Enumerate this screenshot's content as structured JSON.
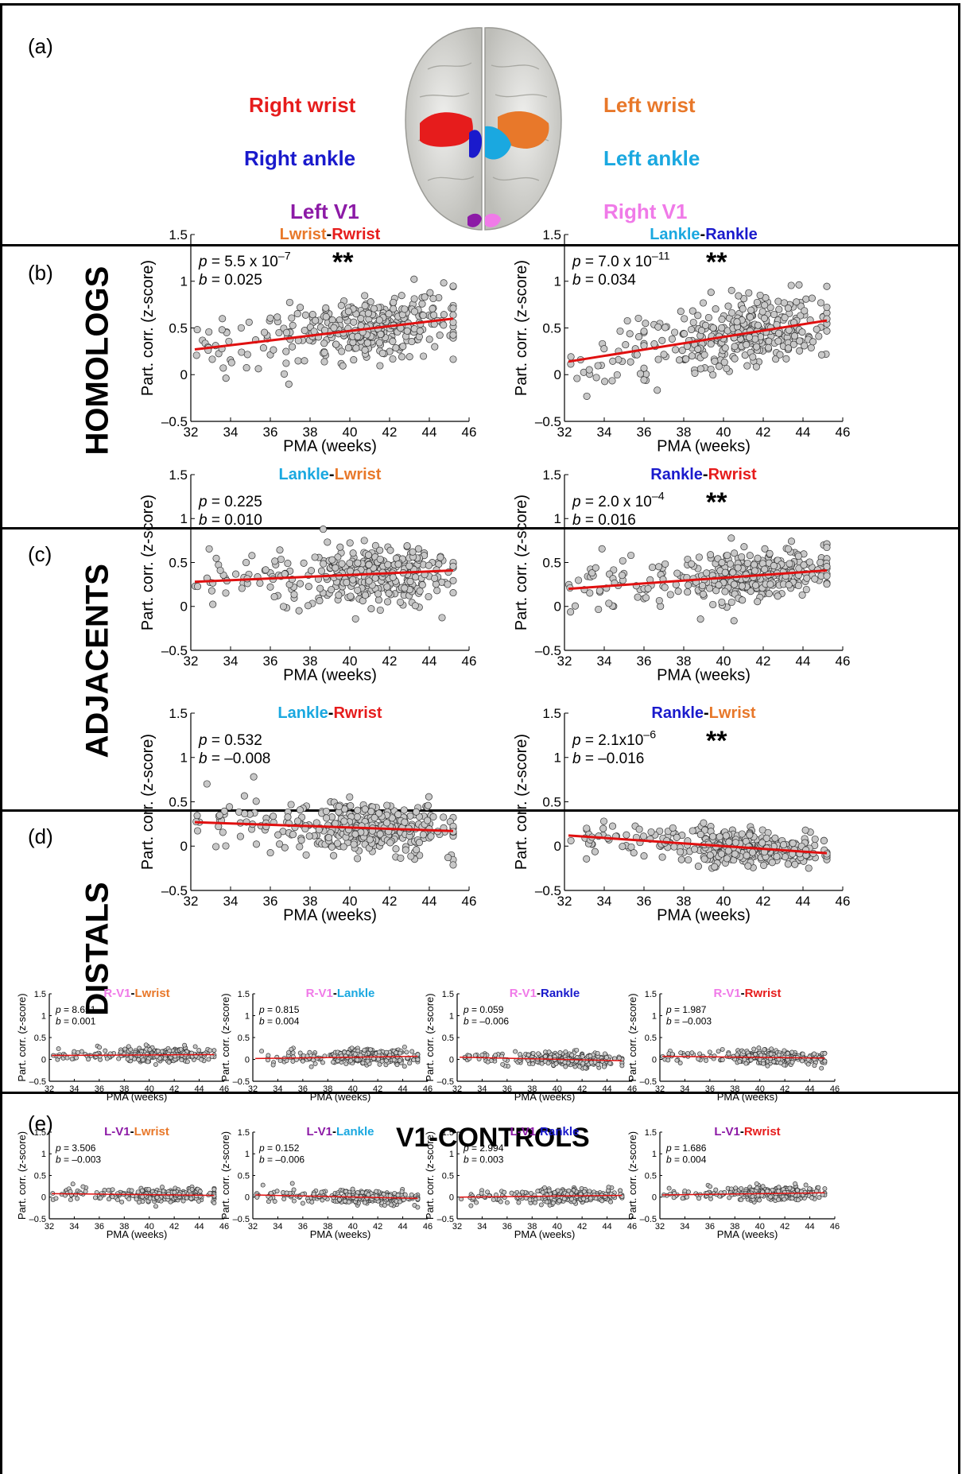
{
  "colors": {
    "right_wrist": "#e61c1c",
    "right_ankle": "#1a1acc",
    "left_v1": "#8c1aa6",
    "left_wrist": "#e8782a",
    "left_ankle": "#1aa8e0",
    "right_v1": "#f07ae8",
    "fit_line": "#e01010",
    "points": "#c8c8c8"
  },
  "panel_a": {
    "label": "(a)",
    "left_labels": [
      "Right wrist",
      "Right ankle",
      "Left V1"
    ],
    "right_labels": [
      "Left wrist",
      "Left ankle",
      "Right V1"
    ]
  },
  "panel_b": {
    "label": "(b)",
    "row_label": "HOMOLOGS"
  },
  "panel_c": {
    "label": "(c)",
    "row_label": "ADJACENTS"
  },
  "panel_d": {
    "label": "(d)",
    "row_label": "DISTALS"
  },
  "panel_e": {
    "label": "(e)",
    "title": "V1-CONTROLS"
  },
  "axes": {
    "xlabel": "PMA (weeks)",
    "ylabel": "Part. corr. (z-score)",
    "xlim": [
      32,
      46
    ],
    "ylim": [
      -0.5,
      1.5
    ],
    "xticks": [
      "32",
      "34",
      "36",
      "38",
      "40",
      "42",
      "44",
      "46"
    ],
    "yticks": [
      "–0.5",
      "0",
      "0.5",
      "1",
      "1.5"
    ]
  },
  "chart_data": [
    {
      "type": "scatter",
      "title_parts": [
        {
          "text": "Lwrist",
          "color": "left_wrist"
        },
        {
          "text": "-",
          "color": "black"
        },
        {
          "text": "Rwrist",
          "color": "right_wrist"
        }
      ],
      "p_text": "5.5 x 10",
      "p_exp": "–7",
      "b_text": "0.025",
      "stars": "**",
      "fit": {
        "x": [
          32.2,
          45.2
        ],
        "y": [
          0.27,
          0.6
        ]
      },
      "mean": 0.48,
      "spread": 0.17
    },
    {
      "type": "scatter",
      "title_parts": [
        {
          "text": "Lankle",
          "color": "left_ankle"
        },
        {
          "text": "-",
          "color": "black"
        },
        {
          "text": "Rankle",
          "color": "right_ankle"
        }
      ],
      "p_text": "7.0 x 10",
      "p_exp": "–11",
      "b_text": "0.034",
      "stars": "**",
      "fit": {
        "x": [
          32.2,
          45.2
        ],
        "y": [
          0.14,
          0.58
        ]
      },
      "mean": 0.44,
      "spread": 0.18
    },
    {
      "type": "scatter",
      "title_parts": [
        {
          "text": "Lankle",
          "color": "left_ankle"
        },
        {
          "text": "-",
          "color": "black"
        },
        {
          "text": "Lwrist",
          "color": "left_wrist"
        }
      ],
      "p_text": "0.225",
      "p_exp": "",
      "b_text": "0.010",
      "stars": "",
      "fit": {
        "x": [
          32.2,
          45.2
        ],
        "y": [
          0.28,
          0.41
        ]
      },
      "mean": 0.36,
      "spread": 0.16
    },
    {
      "type": "scatter",
      "title_parts": [
        {
          "text": "Rankle",
          "color": "right_ankle"
        },
        {
          "text": "-",
          "color": "black"
        },
        {
          "text": "Rwrist",
          "color": "right_wrist"
        }
      ],
      "p_text": "2.0 x 10",
      "p_exp": "–4",
      "b_text": "0.016",
      "stars": "**",
      "fit": {
        "x": [
          32.2,
          45.2
        ],
        "y": [
          0.2,
          0.41
        ]
      },
      "mean": 0.33,
      "spread": 0.15
    },
    {
      "type": "scatter",
      "title_parts": [
        {
          "text": "Lankle",
          "color": "left_ankle"
        },
        {
          "text": "-",
          "color": "black"
        },
        {
          "text": "Rwrist",
          "color": "right_wrist"
        }
      ],
      "p_text": "0.532",
      "p_exp": "",
      "b_text": "–0.008",
      "stars": "",
      "fit": {
        "x": [
          32.2,
          45.2
        ],
        "y": [
          0.27,
          0.17
        ]
      },
      "mean": 0.21,
      "spread": 0.15
    },
    {
      "type": "scatter",
      "title_parts": [
        {
          "text": "Rankle",
          "color": "right_ankle"
        },
        {
          "text": "-",
          "color": "black"
        },
        {
          "text": "Lwrist",
          "color": "left_wrist"
        }
      ],
      "p_text": "2.1x10",
      "p_exp": "–6",
      "b_text": "–0.016",
      "stars": "**",
      "fit": {
        "x": [
          32.2,
          45.2
        ],
        "y": [
          0.12,
          -0.08
        ]
      },
      "mean": 0.02,
      "spread": 0.1
    },
    {
      "type": "scatter",
      "title_parts": [
        {
          "text": "R-V1",
          "color": "right_v1"
        },
        {
          "text": "-",
          "color": "black"
        },
        {
          "text": "Lwrist",
          "color": "left_wrist"
        }
      ],
      "p_text": "8.651",
      "p_exp": "",
      "b_text": "0.001",
      "stars": "",
      "fit": {
        "x": [
          32.2,
          45.2
        ],
        "y": [
          0.09,
          0.11
        ]
      },
      "mean": 0.1,
      "spread": 0.08
    },
    {
      "type": "scatter",
      "title_parts": [
        {
          "text": "R-V1",
          "color": "right_v1"
        },
        {
          "text": "-",
          "color": "black"
        },
        {
          "text": "Lankle",
          "color": "left_ankle"
        }
      ],
      "p_text": "0.815",
      "p_exp": "",
      "b_text": "0.004",
      "stars": "",
      "fit": {
        "x": [
          32.2,
          45.2
        ],
        "y": [
          0.02,
          0.07
        ]
      },
      "mean": 0.05,
      "spread": 0.08
    },
    {
      "type": "scatter",
      "title_parts": [
        {
          "text": "R-V1",
          "color": "right_v1"
        },
        {
          "text": "-",
          "color": "black"
        },
        {
          "text": "Rankle",
          "color": "right_ankle"
        }
      ],
      "p_text": "0.059",
      "p_exp": "",
      "b_text": "–0.006",
      "stars": "",
      "fit": {
        "x": [
          32.2,
          45.2
        ],
        "y": [
          0.05,
          -0.03
        ]
      },
      "mean": 0.0,
      "spread": 0.08
    },
    {
      "type": "scatter",
      "title_parts": [
        {
          "text": "R-V1",
          "color": "right_v1"
        },
        {
          "text": "-",
          "color": "black"
        },
        {
          "text": "Rwrist",
          "color": "right_wrist"
        }
      ],
      "p_text": "1.987",
      "p_exp": "",
      "b_text": "–0.003",
      "stars": "",
      "fit": {
        "x": [
          32.2,
          45.2
        ],
        "y": [
          0.07,
          0.03
        ]
      },
      "mean": 0.04,
      "spread": 0.08
    },
    {
      "type": "scatter",
      "title_parts": [
        {
          "text": "L-V1",
          "color": "left_v1"
        },
        {
          "text": "-",
          "color": "black"
        },
        {
          "text": "Lwrist",
          "color": "left_wrist"
        }
      ],
      "p_text": "3.506",
      "p_exp": "",
      "b_text": "–0.003",
      "stars": "",
      "fit": {
        "x": [
          32.2,
          45.2
        ],
        "y": [
          0.08,
          0.04
        ]
      },
      "mean": 0.05,
      "spread": 0.08
    },
    {
      "type": "scatter",
      "title_parts": [
        {
          "text": "L-V1",
          "color": "left_v1"
        },
        {
          "text": "-",
          "color": "black"
        },
        {
          "text": "Lankle",
          "color": "left_ankle"
        }
      ],
      "p_text": "0.152",
      "p_exp": "",
      "b_text": "–0.006",
      "stars": "",
      "fit": {
        "x": [
          32.2,
          45.2
        ],
        "y": [
          0.05,
          -0.03
        ]
      },
      "mean": 0.0,
      "spread": 0.08
    },
    {
      "type": "scatter",
      "title_parts": [
        {
          "text": "L-V1",
          "color": "left_v1"
        },
        {
          "text": "-",
          "color": "black"
        },
        {
          "text": "Rankle",
          "color": "right_ankle"
        }
      ],
      "p_text": "2.994",
      "p_exp": "",
      "b_text": "0.003",
      "stars": "",
      "fit": {
        "x": [
          32.2,
          45.2
        ],
        "y": [
          0.0,
          0.04
        ]
      },
      "mean": 0.02,
      "spread": 0.08
    },
    {
      "type": "scatter",
      "title_parts": [
        {
          "text": "L-V1",
          "color": "left_v1"
        },
        {
          "text": "-",
          "color": "black"
        },
        {
          "text": "Rwrist",
          "color": "right_wrist"
        }
      ],
      "p_text": "1.686",
      "p_exp": "",
      "b_text": "0.004",
      "stars": "",
      "fit": {
        "x": [
          32.2,
          45.2
        ],
        "y": [
          0.05,
          0.1
        ]
      },
      "mean": 0.08,
      "spread": 0.08
    }
  ]
}
